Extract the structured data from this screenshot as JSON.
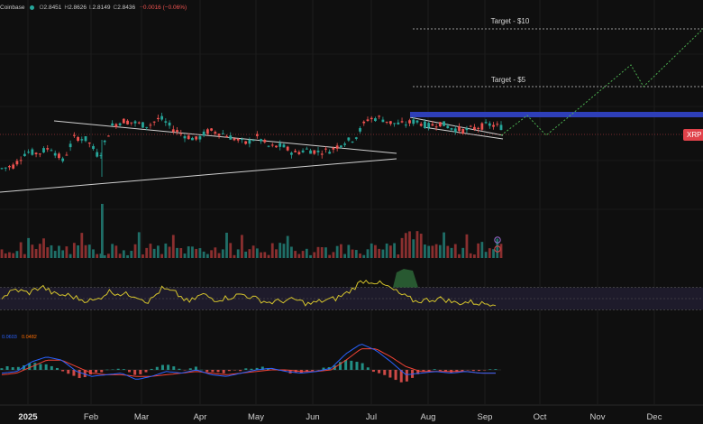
{
  "header": {
    "source": "Coinbase",
    "open_key": "O",
    "open": "2.8451",
    "high_key": "H",
    "high": "2.8626",
    "low_key": "L",
    "low": "2.8149",
    "close_key": "C",
    "close": "2.8436",
    "change": "−0.0016 (−0.06%)",
    "status_color": "#26a69a"
  },
  "price_label": {
    "text": "XRP",
    "color": "#e0424a"
  },
  "macd_values": {
    "macd": "0.0603",
    "signal": "0.0482",
    "macd_color": "#2962ff",
    "signal_color": "#ff6d00"
  },
  "colors": {
    "up": "#26a69a",
    "down": "#ef5350",
    "rsi": "#d5c42c",
    "resistance": "#2e3fb8",
    "projection": "#4caf50",
    "trendline": "#d0d0d0",
    "macd_line": "#2962ff",
    "signal_line": "#f44336"
  },
  "chart_data": {
    "type": "candlestick",
    "panels": [
      "price",
      "volume",
      "rsi",
      "macd"
    ],
    "x_axis": {
      "ticks": [
        "2025",
        "Feb",
        "Mar",
        "Apr",
        "May",
        "Jun",
        "Jul",
        "Aug",
        "Sep",
        "Oct",
        "Nov",
        "Dec"
      ]
    },
    "annotations": [
      {
        "label": "Target - $10"
      },
      {
        "label": "Target - $5"
      }
    ],
    "price_series": [
      0.3,
      0.34,
      0.52,
      0.5,
      0.58,
      0.4,
      0.72,
      0.68,
      0.45,
      0.86,
      0.93,
      0.9,
      0.86,
      0.97,
      0.83,
      0.74,
      0.68,
      0.8,
      0.77,
      0.7,
      0.63,
      0.72,
      0.58,
      0.6,
      0.5,
      0.55,
      0.52,
      0.54,
      0.64,
      0.7,
      0.95,
      0.97,
      0.9,
      0.88,
      0.93,
      0.86,
      0.9,
      0.83,
      0.8,
      0.84,
      0.88,
      0.85
    ],
    "rsi_series": [
      52,
      66,
      60,
      72,
      57,
      56,
      48,
      46,
      63,
      58,
      56,
      44,
      68,
      60,
      43,
      58,
      48,
      52,
      58,
      50,
      43,
      46,
      48,
      40,
      46,
      50,
      62,
      82,
      80,
      70,
      56,
      45,
      48,
      50,
      42,
      44,
      41,
      42
    ],
    "macd_series": [
      -0.02,
      -0.01,
      0.05,
      0.08,
      0.06,
      -0.01,
      -0.04,
      -0.03,
      -0.02,
      -0.06,
      -0.04,
      -0.01,
      -0.02,
      0.0,
      -0.03,
      -0.04,
      -0.02,
      0.0,
      0.01,
      -0.01,
      -0.02,
      -0.01,
      0.01,
      0.1,
      0.16,
      0.12,
      0.05,
      -0.03,
      -0.02,
      -0.01,
      -0.02,
      -0.01,
      -0.02,
      -0.02
    ],
    "signal_series": [
      -0.03,
      -0.02,
      0.02,
      0.06,
      0.06,
      0.02,
      -0.02,
      -0.03,
      -0.03,
      -0.04,
      -0.04,
      -0.03,
      -0.02,
      -0.01,
      -0.02,
      -0.03,
      -0.02,
      -0.01,
      0.0,
      0.0,
      -0.01,
      -0.01,
      0.0,
      0.06,
      0.13,
      0.13,
      0.08,
      0.02,
      -0.01,
      -0.01,
      -0.01,
      -0.01,
      -0.02,
      -0.02
    ]
  }
}
